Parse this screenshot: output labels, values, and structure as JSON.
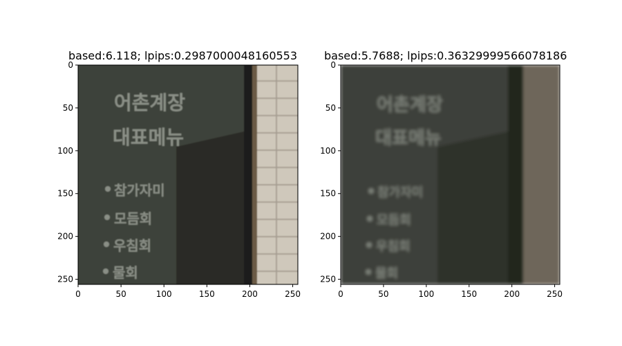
{
  "panels": [
    {
      "title": "based:6.118; lpips:0.2987000048160553",
      "sign_lines": [
        "어촌계장",
        "대표메뉴"
      ],
      "menu_items": [
        "참가자미",
        "모듬회",
        "우침회",
        "물회"
      ]
    },
    {
      "title": "based:5.7688; lpips:0.36329999566078186",
      "sign_lines": [
        "어촌계장",
        "대표메뉴"
      ],
      "menu_items": [
        "참가자미",
        "모듬회",
        "우침회",
        "물회"
      ]
    }
  ],
  "chart_data": [
    {
      "type": "image",
      "title": "based:6.118; lpips:0.2987000048160553",
      "xlim": [
        0,
        256
      ],
      "ylim": [
        256,
        0
      ],
      "xticks": [
        0,
        50,
        100,
        150,
        200,
        250
      ],
      "yticks": [
        0,
        50,
        100,
        150,
        200,
        250
      ]
    },
    {
      "type": "image",
      "title": "based:5.7688; lpips:0.36329999566078186",
      "xlim": [
        0,
        256
      ],
      "ylim": [
        256,
        0
      ],
      "xticks": [
        0,
        50,
        100,
        150,
        200,
        250
      ],
      "yticks": [
        0,
        50,
        100,
        150,
        200,
        250
      ]
    }
  ]
}
